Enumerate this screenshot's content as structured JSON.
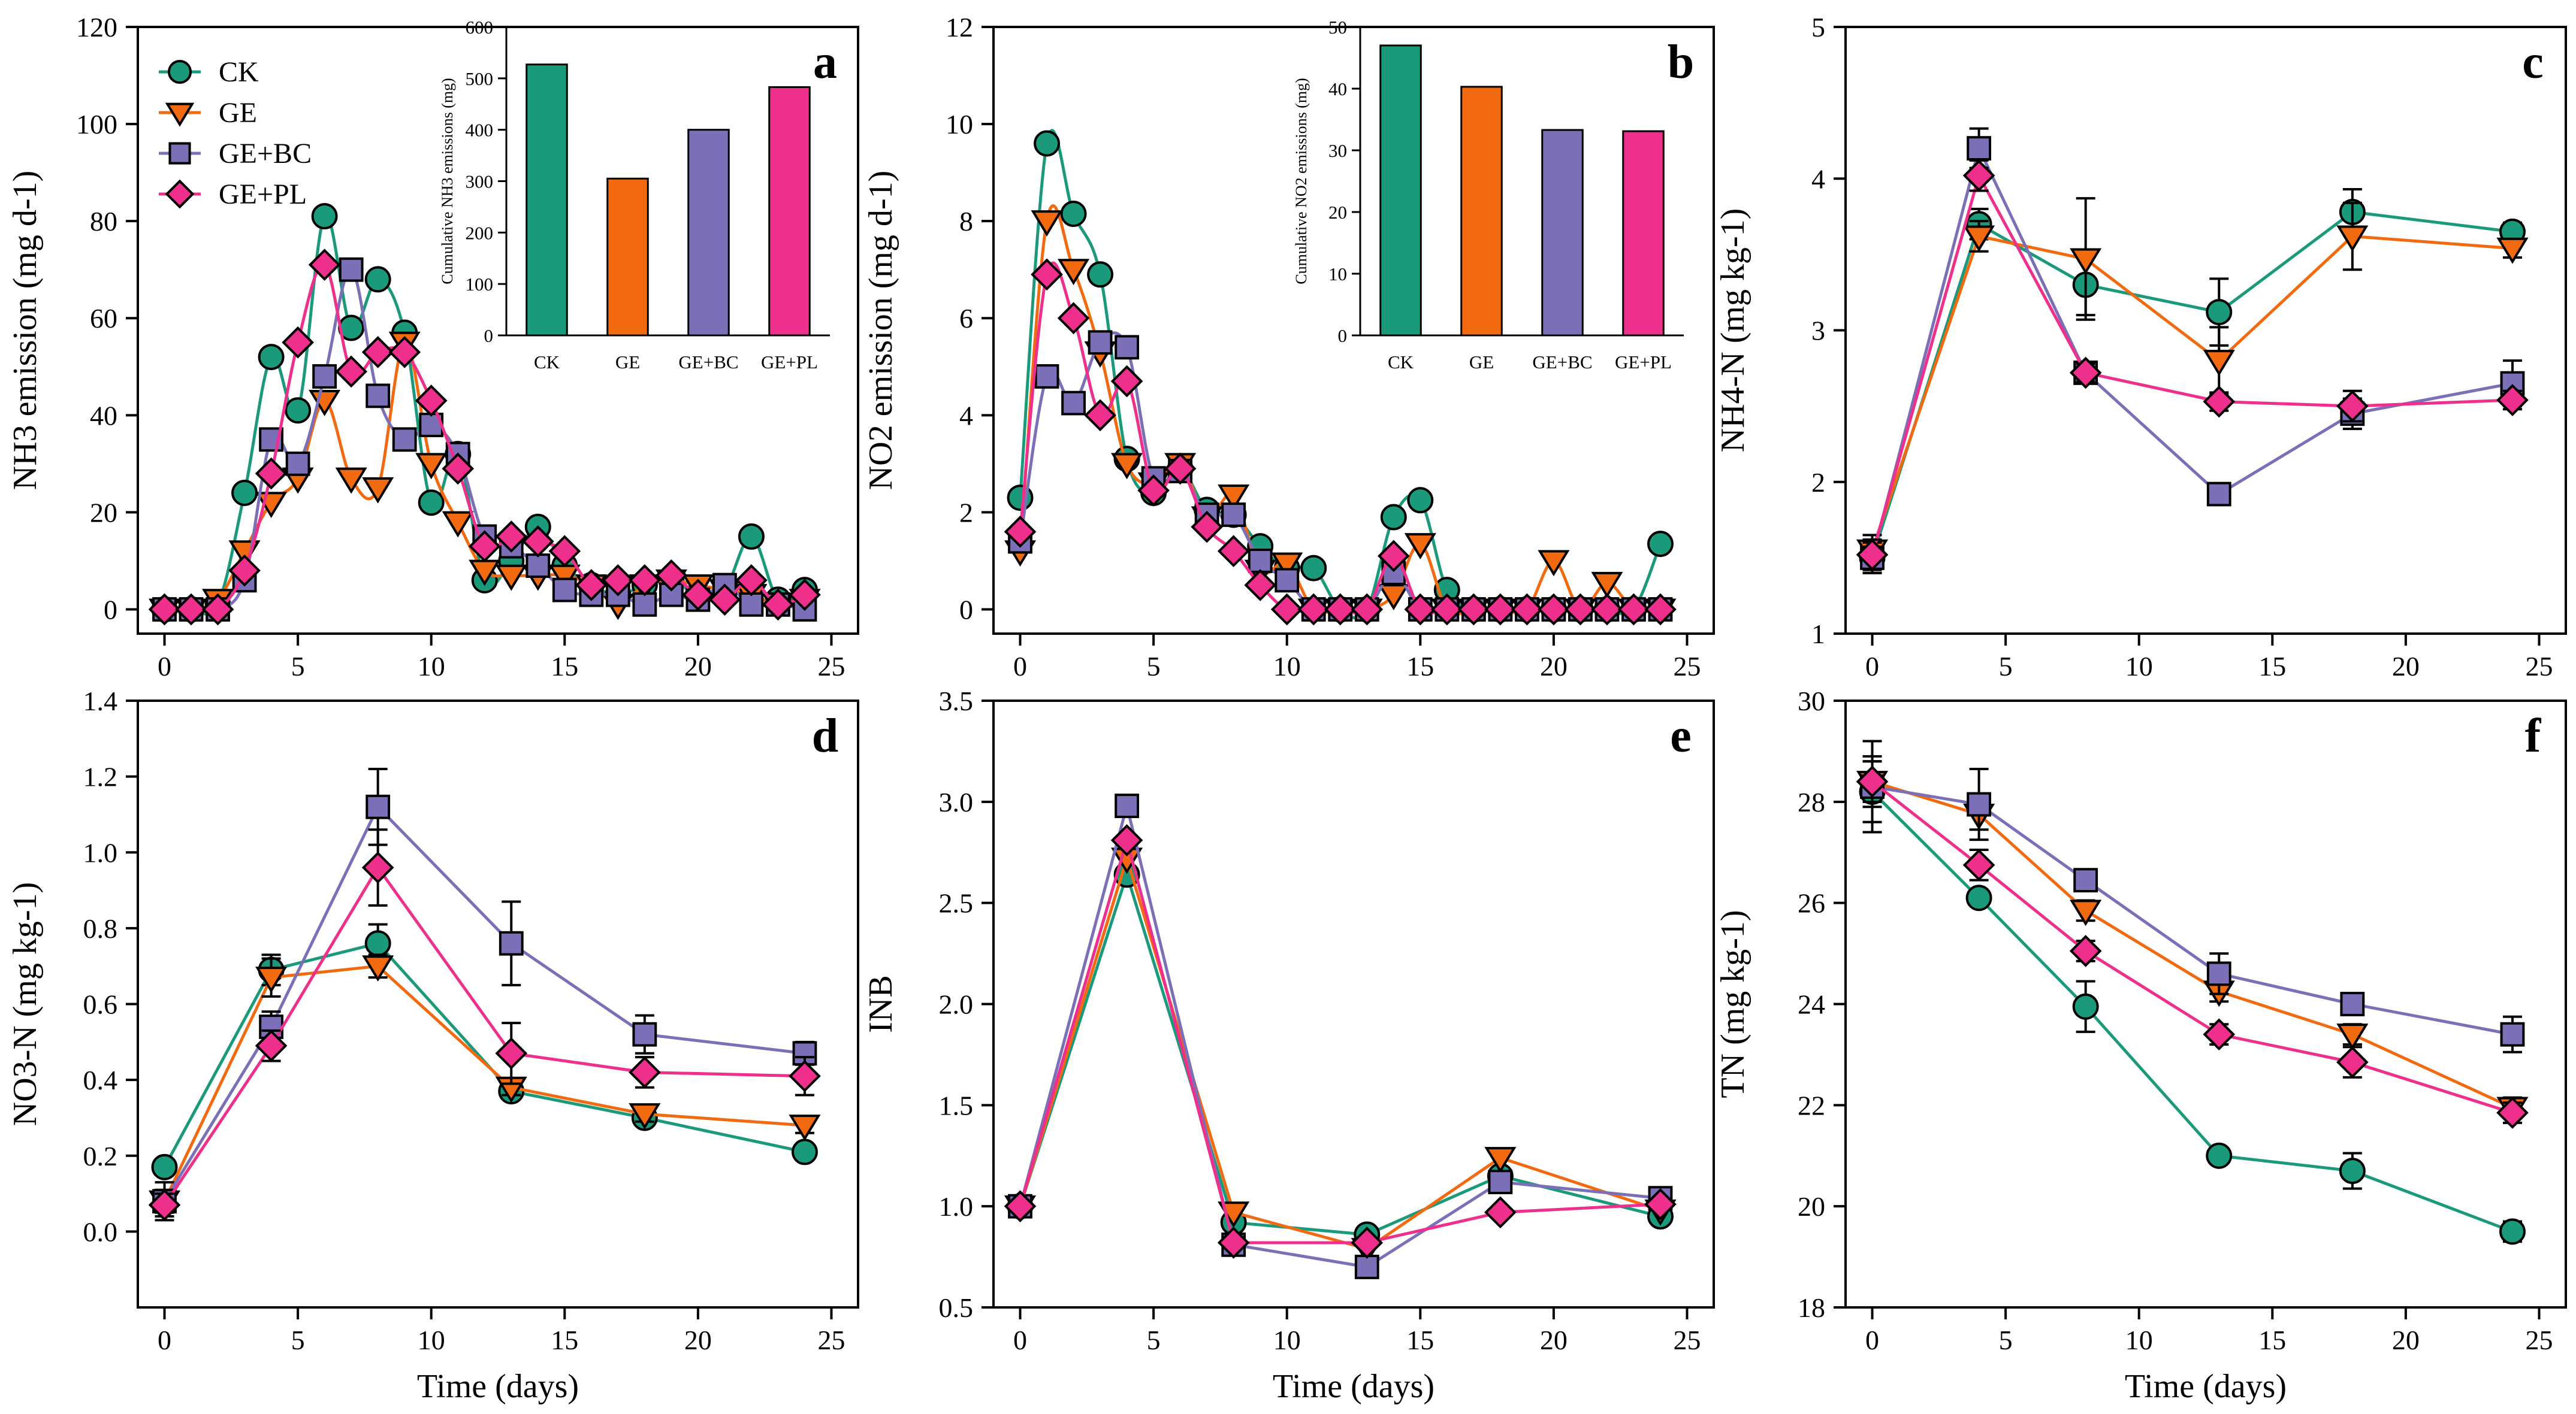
{
  "figure": {
    "series_names": [
      "CK",
      "GE",
      "GE+BC",
      "GE+PL"
    ],
    "colors": {
      "CK": "#1a9a7a",
      "GE": "#f26a10",
      "GE+BC": "#7b70b8",
      "GE+PL": "#ee2f8c"
    },
    "markers": {
      "CK": "circle",
      "GE": "triangle-down",
      "GE+BC": "square",
      "GE+PL": "diamond"
    }
  },
  "chart_data": [
    {
      "id": "a",
      "panel_label": "a",
      "type": "line",
      "ylabel": "NH3 emission (mg d-1)",
      "xlabel": "",
      "xlim": [
        -1,
        26
      ],
      "ylim": [
        -5,
        120
      ],
      "xticks": [
        0,
        5,
        10,
        15,
        20,
        25
      ],
      "yticks": [
        0,
        20,
        40,
        60,
        80,
        100,
        120
      ],
      "legend": "top-left",
      "smooth": true,
      "errorbars": false,
      "series": [
        {
          "name": "CK",
          "x": [
            0,
            1,
            2,
            3,
            4,
            5,
            6,
            7,
            8,
            9,
            10,
            11,
            12,
            13,
            14,
            15,
            16,
            17,
            18,
            19,
            20,
            21,
            22,
            23,
            24
          ],
          "y": [
            0,
            0,
            1,
            24,
            52,
            41,
            81,
            58,
            68,
            57,
            22,
            32,
            6,
            10,
            17,
            9,
            5,
            3,
            5,
            6,
            3,
            4,
            15,
            2,
            4
          ]
        },
        {
          "name": "GE",
          "x": [
            0,
            1,
            2,
            3,
            4,
            5,
            6,
            7,
            8,
            9,
            10,
            11,
            12,
            13,
            14,
            15,
            16,
            17,
            18,
            19,
            20,
            21,
            22,
            23,
            24
          ],
          "y": [
            0,
            0,
            2,
            12,
            22,
            27,
            43,
            27,
            25,
            55,
            30,
            18,
            8,
            7,
            7,
            7,
            5,
            1,
            5,
            6,
            5,
            4,
            3,
            1,
            2
          ]
        },
        {
          "name": "GE+BC",
          "x": [
            0,
            1,
            2,
            3,
            4,
            5,
            6,
            7,
            8,
            9,
            10,
            11,
            12,
            13,
            14,
            15,
            16,
            17,
            18,
            19,
            20,
            21,
            22,
            23,
            24
          ],
          "y": [
            0,
            0,
            0,
            6,
            35,
            30,
            48,
            70,
            44,
            35,
            38,
            32,
            15,
            13,
            9,
            4,
            3,
            3,
            1,
            3,
            2,
            5,
            1,
            1,
            0
          ]
        },
        {
          "name": "GE+PL",
          "x": [
            0,
            1,
            2,
            3,
            4,
            5,
            6,
            7,
            8,
            9,
            10,
            11,
            12,
            13,
            14,
            15,
            16,
            17,
            18,
            19,
            20,
            21,
            22,
            23,
            24
          ],
          "y": [
            0,
            0,
            0,
            8,
            28,
            55,
            71,
            49,
            53,
            53,
            43,
            29,
            13,
            15,
            14,
            12,
            5,
            6,
            6,
            7,
            3,
            2,
            6,
            1,
            3
          ]
        }
      ],
      "inset": {
        "type": "bar",
        "ylabel": "Cumulative NH3 emissions (mg)",
        "categories": [
          "CK",
          "GE",
          "GE+BC",
          "GE+PL"
        ],
        "values": [
          527,
          305,
          400,
          483
        ],
        "ylim": [
          0,
          600
        ],
        "yticks": [
          0,
          100,
          200,
          300,
          400,
          500,
          600
        ]
      }
    },
    {
      "id": "b",
      "panel_label": "b",
      "type": "line",
      "ylabel": "NO2 emission (mg d-1)",
      "xlabel": "",
      "xlim": [
        -1,
        26
      ],
      "ylim": [
        -0.5,
        12
      ],
      "xticks": [
        0,
        5,
        10,
        15,
        20,
        25
      ],
      "yticks": [
        0,
        2,
        4,
        6,
        8,
        10,
        12
      ],
      "smooth": true,
      "errorbars": false,
      "series": [
        {
          "name": "CK",
          "x": [
            0,
            1,
            2,
            3,
            4,
            5,
            6,
            7,
            8,
            9,
            10,
            11,
            12,
            13,
            14,
            15,
            16,
            17,
            18,
            19,
            20,
            21,
            22,
            23,
            24
          ],
          "y": [
            2.3,
            9.6,
            8.15,
            6.9,
            3.1,
            2.4,
            2.9,
            2.05,
            1.95,
            1.3,
            0.85,
            0.85,
            0,
            0,
            1.9,
            2.25,
            0.4,
            0,
            0,
            0,
            0,
            0,
            0,
            0,
            1.35
          ]
        },
        {
          "name": "GE",
          "x": [
            0,
            1,
            2,
            3,
            4,
            5,
            6,
            7,
            8,
            9,
            10,
            11,
            12,
            13,
            14,
            15,
            16,
            17,
            18,
            19,
            20,
            21,
            22,
            23,
            24
          ],
          "y": [
            1.2,
            8.0,
            7.0,
            5.3,
            3.0,
            2.6,
            3.0,
            1.9,
            2.35,
            0.8,
            0.95,
            0,
            0,
            0,
            0.3,
            1.35,
            0,
            0,
            0,
            0,
            1.0,
            0,
            0.55,
            0,
            0
          ]
        },
        {
          "name": "GE+BC",
          "x": [
            0,
            1,
            2,
            3,
            4,
            5,
            6,
            7,
            8,
            9,
            10,
            11,
            12,
            13,
            14,
            15,
            16,
            17,
            18,
            19,
            20,
            21,
            22,
            23,
            24
          ],
          "y": [
            1.4,
            4.8,
            4.25,
            5.5,
            5.4,
            2.7,
            2.85,
            1.95,
            1.95,
            1.0,
            0.6,
            0,
            0,
            0,
            0.75,
            0,
            0,
            0,
            0,
            0,
            0,
            0,
            0,
            0,
            0
          ]
        },
        {
          "name": "GE+PL",
          "x": [
            0,
            1,
            2,
            3,
            4,
            5,
            6,
            7,
            8,
            9,
            10,
            11,
            12,
            13,
            14,
            15,
            16,
            17,
            18,
            19,
            20,
            21,
            22,
            23,
            24
          ],
          "y": [
            1.6,
            6.9,
            6.0,
            4.0,
            4.7,
            2.45,
            2.9,
            1.7,
            1.2,
            0.5,
            0,
            0,
            0,
            0,
            1.1,
            0,
            0,
            0,
            0,
            0,
            0,
            0,
            0,
            0,
            0
          ]
        }
      ],
      "inset": {
        "type": "bar",
        "ylabel": "Cumulative NO2 emissions (mg)",
        "categories": [
          "CK",
          "GE",
          "GE+BC",
          "GE+PL"
        ],
        "values": [
          47,
          40.3,
          33.3,
          33.1
        ],
        "ylim": [
          0,
          50
        ],
        "yticks": [
          0,
          10,
          20,
          30,
          40,
          50
        ]
      }
    },
    {
      "id": "c",
      "panel_label": "c",
      "type": "line",
      "ylabel": "NH4-N (mg kg-1)",
      "xlabel": "",
      "xlim": [
        -1,
        26
      ],
      "ylim": [
        1,
        5
      ],
      "xticks": [
        0,
        5,
        10,
        15,
        20,
        25
      ],
      "yticks": [
        1,
        2,
        3,
        4,
        5
      ],
      "smooth": false,
      "errorbars": true,
      "series": [
        {
          "name": "CK",
          "x": [
            0,
            4,
            8,
            13,
            18,
            24
          ],
          "y": [
            1.5,
            3.7,
            3.3,
            3.12,
            3.78,
            3.65
          ],
          "err": [
            0.1,
            0.1,
            0.2,
            0.22,
            0.15,
            0.06
          ]
        },
        {
          "name": "GE",
          "x": [
            0,
            4,
            8,
            13,
            18,
            24
          ],
          "y": [
            1.55,
            3.62,
            3.47,
            2.8,
            3.62,
            3.54
          ],
          "err": [
            0.1,
            0.1,
            0.4,
            0.22,
            0.22,
            0.06
          ]
        },
        {
          "name": "GE+BC",
          "x": [
            0,
            4,
            8,
            13,
            18,
            24
          ],
          "y": [
            1.5,
            4.2,
            2.72,
            1.92,
            2.45,
            2.65
          ],
          "err": [
            0.1,
            0.13,
            0.06,
            0.05,
            0.1,
            0.15
          ]
        },
        {
          "name": "GE+PL",
          "x": [
            0,
            4,
            8,
            13,
            18,
            24
          ],
          "y": [
            1.52,
            4.02,
            2.72,
            2.53,
            2.5,
            2.54
          ],
          "err": [
            0.1,
            0.1,
            0.06,
            0.06,
            0.1,
            0.06
          ]
        }
      ]
    },
    {
      "id": "d",
      "panel_label": "d",
      "type": "line",
      "ylabel": "NO3-N (mg kg-1)",
      "xlabel": "Time (days)",
      "xlim": [
        -1,
        26
      ],
      "ylim": [
        -0.2,
        1.4
      ],
      "xticks": [
        0,
        5,
        10,
        15,
        20,
        25
      ],
      "yticks": [
        0.0,
        0.2,
        0.4,
        0.6,
        0.8,
        1.0,
        1.2,
        1.4
      ],
      "smooth": false,
      "errorbars": true,
      "series": [
        {
          "name": "CK",
          "x": [
            0,
            4,
            8,
            13,
            18,
            24
          ],
          "y": [
            0.17,
            0.69,
            0.76,
            0.37,
            0.3,
            0.21
          ],
          "err": [
            0.01,
            0.04,
            0.05,
            0.02,
            0.02,
            0.02
          ]
        },
        {
          "name": "GE",
          "x": [
            0,
            4,
            8,
            13,
            18,
            24
          ],
          "y": [
            0.08,
            0.67,
            0.7,
            0.38,
            0.31,
            0.28
          ],
          "err": [
            0.05,
            0.05,
            0.03,
            0.02,
            0.02,
            0.02
          ]
        },
        {
          "name": "GE+BC",
          "x": [
            0,
            4,
            8,
            13,
            18,
            24
          ],
          "y": [
            0.08,
            0.54,
            1.12,
            0.76,
            0.52,
            0.47
          ],
          "err": [
            0.03,
            0.04,
            0.1,
            0.11,
            0.05,
            0.03
          ]
        },
        {
          "name": "GE+PL",
          "x": [
            0,
            4,
            8,
            13,
            18,
            24
          ],
          "y": [
            0.07,
            0.49,
            0.96,
            0.47,
            0.42,
            0.41
          ],
          "err": [
            0.03,
            0.04,
            0.1,
            0.08,
            0.04,
            0.05
          ]
        }
      ]
    },
    {
      "id": "e",
      "panel_label": "e",
      "type": "line",
      "ylabel": "INB",
      "xlabel": "Time (days)",
      "xlim": [
        -1,
        26
      ],
      "ylim": [
        0.5,
        3.5
      ],
      "xticks": [
        0,
        5,
        10,
        15,
        20,
        25
      ],
      "yticks": [
        0.5,
        1.0,
        1.5,
        2.0,
        2.5,
        3.0,
        3.5
      ],
      "smooth": false,
      "errorbars": false,
      "series": [
        {
          "name": "CK",
          "x": [
            0,
            4,
            8,
            13,
            18,
            24
          ],
          "y": [
            1.0,
            2.64,
            0.92,
            0.86,
            1.15,
            0.95
          ]
        },
        {
          "name": "GE",
          "x": [
            0,
            4,
            8,
            13,
            18,
            24
          ],
          "y": [
            1.0,
            2.72,
            0.97,
            0.79,
            1.24,
            0.98
          ]
        },
        {
          "name": "GE+BC",
          "x": [
            0,
            4,
            8,
            13,
            18,
            24
          ],
          "y": [
            1.0,
            2.98,
            0.81,
            0.7,
            1.12,
            1.04
          ]
        },
        {
          "name": "GE+PL",
          "x": [
            0,
            4,
            8,
            13,
            18,
            24
          ],
          "y": [
            1.0,
            2.81,
            0.82,
            0.82,
            0.97,
            1.01
          ]
        }
      ]
    },
    {
      "id": "f",
      "panel_label": "f",
      "type": "line",
      "ylabel": "TN (mg kg-1)",
      "xlabel": "Time (days)",
      "xlim": [
        -1,
        26
      ],
      "ylim": [
        18,
        30
      ],
      "xticks": [
        0,
        5,
        10,
        15,
        20,
        25
      ],
      "yticks": [
        18,
        20,
        22,
        24,
        26,
        28,
        30
      ],
      "smooth": false,
      "errorbars": true,
      "series": [
        {
          "name": "CK",
          "x": [
            0,
            4,
            8,
            13,
            18,
            24
          ],
          "y": [
            28.2,
            26.1,
            23.95,
            21.0,
            20.7,
            19.5
          ],
          "err": [
            0.6,
            0.1,
            0.5,
            0.1,
            0.35,
            0.2
          ]
        },
        {
          "name": "GE",
          "x": [
            0,
            4,
            8,
            13,
            18,
            24
          ],
          "y": [
            28.4,
            27.75,
            25.85,
            24.25,
            23.4,
            21.95
          ],
          "err": [
            0.5,
            0.3,
            0.2,
            0.2,
            0.2,
            0.2
          ]
        },
        {
          "name": "GE+BC",
          "x": [
            0,
            4,
            8,
            13,
            18,
            24
          ],
          "y": [
            28.3,
            27.95,
            26.45,
            24.6,
            24.0,
            23.4
          ],
          "err": [
            0.9,
            0.7,
            0.2,
            0.4,
            0.2,
            0.35
          ]
        },
        {
          "name": "GE+PL",
          "x": [
            0,
            4,
            8,
            13,
            18,
            24
          ],
          "y": [
            28.4,
            26.75,
            25.05,
            23.4,
            22.85,
            21.85
          ],
          "err": [
            0.4,
            0.3,
            0.2,
            0.2,
            0.3,
            0.2
          ]
        }
      ]
    }
  ]
}
